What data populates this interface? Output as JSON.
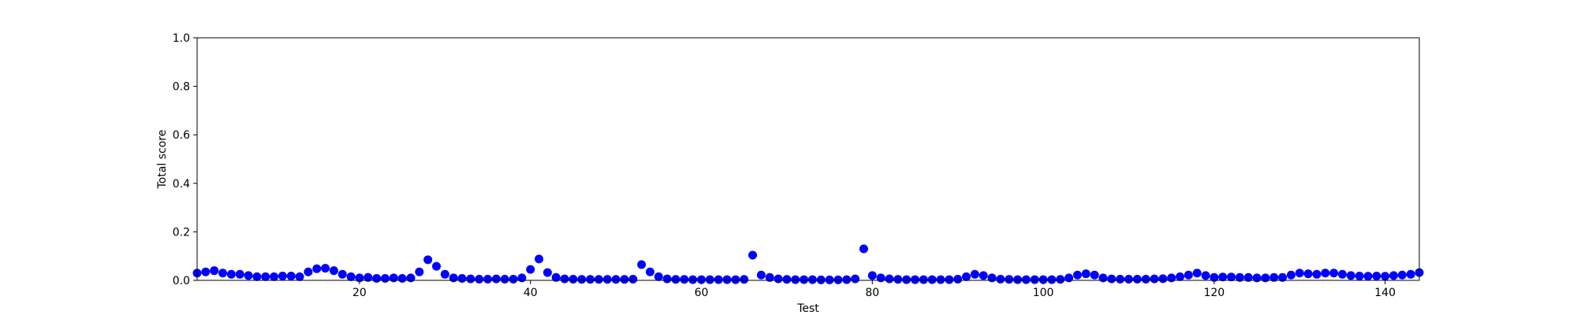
{
  "chart_data": {
    "type": "scatter",
    "title": "",
    "xlabel": "Test",
    "ylabel": "Total score",
    "xlim": [
      1,
      144
    ],
    "ylim": [
      0,
      1.0
    ],
    "xticks": [
      20,
      40,
      60,
      80,
      100,
      120,
      140
    ],
    "yticks": [
      0.0,
      0.2,
      0.4,
      0.6,
      0.8,
      1.0
    ],
    "xtick_labels": [
      "20",
      "40",
      "60",
      "80",
      "100",
      "120",
      "140"
    ],
    "ytick_labels": [
      "0.0",
      "0.2",
      "0.4",
      "0.6",
      "0.8",
      "1.0"
    ],
    "grid": false,
    "legend": "none",
    "marker_color": "#0000ff",
    "series": [
      {
        "points": [
          [
            1,
            0.03
          ],
          [
            2,
            0.035
          ],
          [
            3,
            0.04
          ],
          [
            4,
            0.03
          ],
          [
            5,
            0.025
          ],
          [
            6,
            0.025
          ],
          [
            7,
            0.02
          ],
          [
            8,
            0.015
          ],
          [
            9,
            0.015
          ],
          [
            10,
            0.015
          ],
          [
            11,
            0.018
          ],
          [
            12,
            0.018
          ],
          [
            13,
            0.015
          ],
          [
            14,
            0.035
          ],
          [
            15,
            0.048
          ],
          [
            16,
            0.05
          ],
          [
            17,
            0.04
          ],
          [
            18,
            0.025
          ],
          [
            19,
            0.015
          ],
          [
            20,
            0.01
          ],
          [
            21,
            0.012
          ],
          [
            22,
            0.008
          ],
          [
            23,
            0.008
          ],
          [
            24,
            0.01
          ],
          [
            25,
            0.008
          ],
          [
            26,
            0.01
          ],
          [
            27,
            0.035
          ],
          [
            28,
            0.085
          ],
          [
            29,
            0.058
          ],
          [
            30,
            0.025
          ],
          [
            31,
            0.01
          ],
          [
            32,
            0.008
          ],
          [
            33,
            0.006
          ],
          [
            34,
            0.005
          ],
          [
            35,
            0.005
          ],
          [
            36,
            0.006
          ],
          [
            37,
            0.005
          ],
          [
            38,
            0.005
          ],
          [
            39,
            0.01
          ],
          [
            40,
            0.045
          ],
          [
            41,
            0.088
          ],
          [
            42,
            0.032
          ],
          [
            43,
            0.012
          ],
          [
            44,
            0.006
          ],
          [
            45,
            0.005
          ],
          [
            46,
            0.004
          ],
          [
            47,
            0.004
          ],
          [
            48,
            0.004
          ],
          [
            49,
            0.004
          ],
          [
            50,
            0.004
          ],
          [
            51,
            0.004
          ],
          [
            52,
            0.005
          ],
          [
            53,
            0.065
          ],
          [
            54,
            0.035
          ],
          [
            55,
            0.015
          ],
          [
            56,
            0.006
          ],
          [
            57,
            0.004
          ],
          [
            58,
            0.004
          ],
          [
            59,
            0.003
          ],
          [
            60,
            0.003
          ],
          [
            61,
            0.003
          ],
          [
            62,
            0.003
          ],
          [
            63,
            0.003
          ],
          [
            64,
            0.003
          ],
          [
            65,
            0.004
          ],
          [
            66,
            0.104
          ],
          [
            67,
            0.022
          ],
          [
            68,
            0.012
          ],
          [
            69,
            0.006
          ],
          [
            70,
            0.004
          ],
          [
            71,
            0.003
          ],
          [
            72,
            0.003
          ],
          [
            73,
            0.003
          ],
          [
            74,
            0.002
          ],
          [
            75,
            0.002
          ],
          [
            76,
            0.002
          ],
          [
            77,
            0.003
          ],
          [
            78,
            0.006
          ],
          [
            79,
            0.13
          ],
          [
            80,
            0.02
          ],
          [
            81,
            0.01
          ],
          [
            82,
            0.006
          ],
          [
            83,
            0.004
          ],
          [
            84,
            0.003
          ],
          [
            85,
            0.003
          ],
          [
            86,
            0.003
          ],
          [
            87,
            0.003
          ],
          [
            88,
            0.003
          ],
          [
            89,
            0.003
          ],
          [
            90,
            0.005
          ],
          [
            91,
            0.015
          ],
          [
            92,
            0.025
          ],
          [
            93,
            0.02
          ],
          [
            94,
            0.01
          ],
          [
            95,
            0.005
          ],
          [
            96,
            0.004
          ],
          [
            97,
            0.003
          ],
          [
            98,
            0.003
          ],
          [
            99,
            0.003
          ],
          [
            100,
            0.003
          ],
          [
            101,
            0.003
          ],
          [
            102,
            0.004
          ],
          [
            103,
            0.01
          ],
          [
            104,
            0.022
          ],
          [
            105,
            0.027
          ],
          [
            106,
            0.022
          ],
          [
            107,
            0.01
          ],
          [
            108,
            0.006
          ],
          [
            109,
            0.005
          ],
          [
            110,
            0.005
          ],
          [
            111,
            0.005
          ],
          [
            112,
            0.005
          ],
          [
            113,
            0.006
          ],
          [
            114,
            0.007
          ],
          [
            115,
            0.01
          ],
          [
            116,
            0.015
          ],
          [
            117,
            0.022
          ],
          [
            118,
            0.03
          ],
          [
            119,
            0.02
          ],
          [
            120,
            0.012
          ],
          [
            121,
            0.014
          ],
          [
            122,
            0.014
          ],
          [
            123,
            0.012
          ],
          [
            124,
            0.012
          ],
          [
            125,
            0.01
          ],
          [
            126,
            0.01
          ],
          [
            127,
            0.012
          ],
          [
            128,
            0.012
          ],
          [
            129,
            0.022
          ],
          [
            130,
            0.03
          ],
          [
            131,
            0.027
          ],
          [
            132,
            0.025
          ],
          [
            133,
            0.03
          ],
          [
            134,
            0.03
          ],
          [
            135,
            0.025
          ],
          [
            136,
            0.02
          ],
          [
            137,
            0.018
          ],
          [
            138,
            0.017
          ],
          [
            139,
            0.018
          ],
          [
            140,
            0.017
          ],
          [
            141,
            0.02
          ],
          [
            142,
            0.022
          ],
          [
            143,
            0.025
          ],
          [
            144,
            0.032
          ]
        ]
      }
    ]
  }
}
